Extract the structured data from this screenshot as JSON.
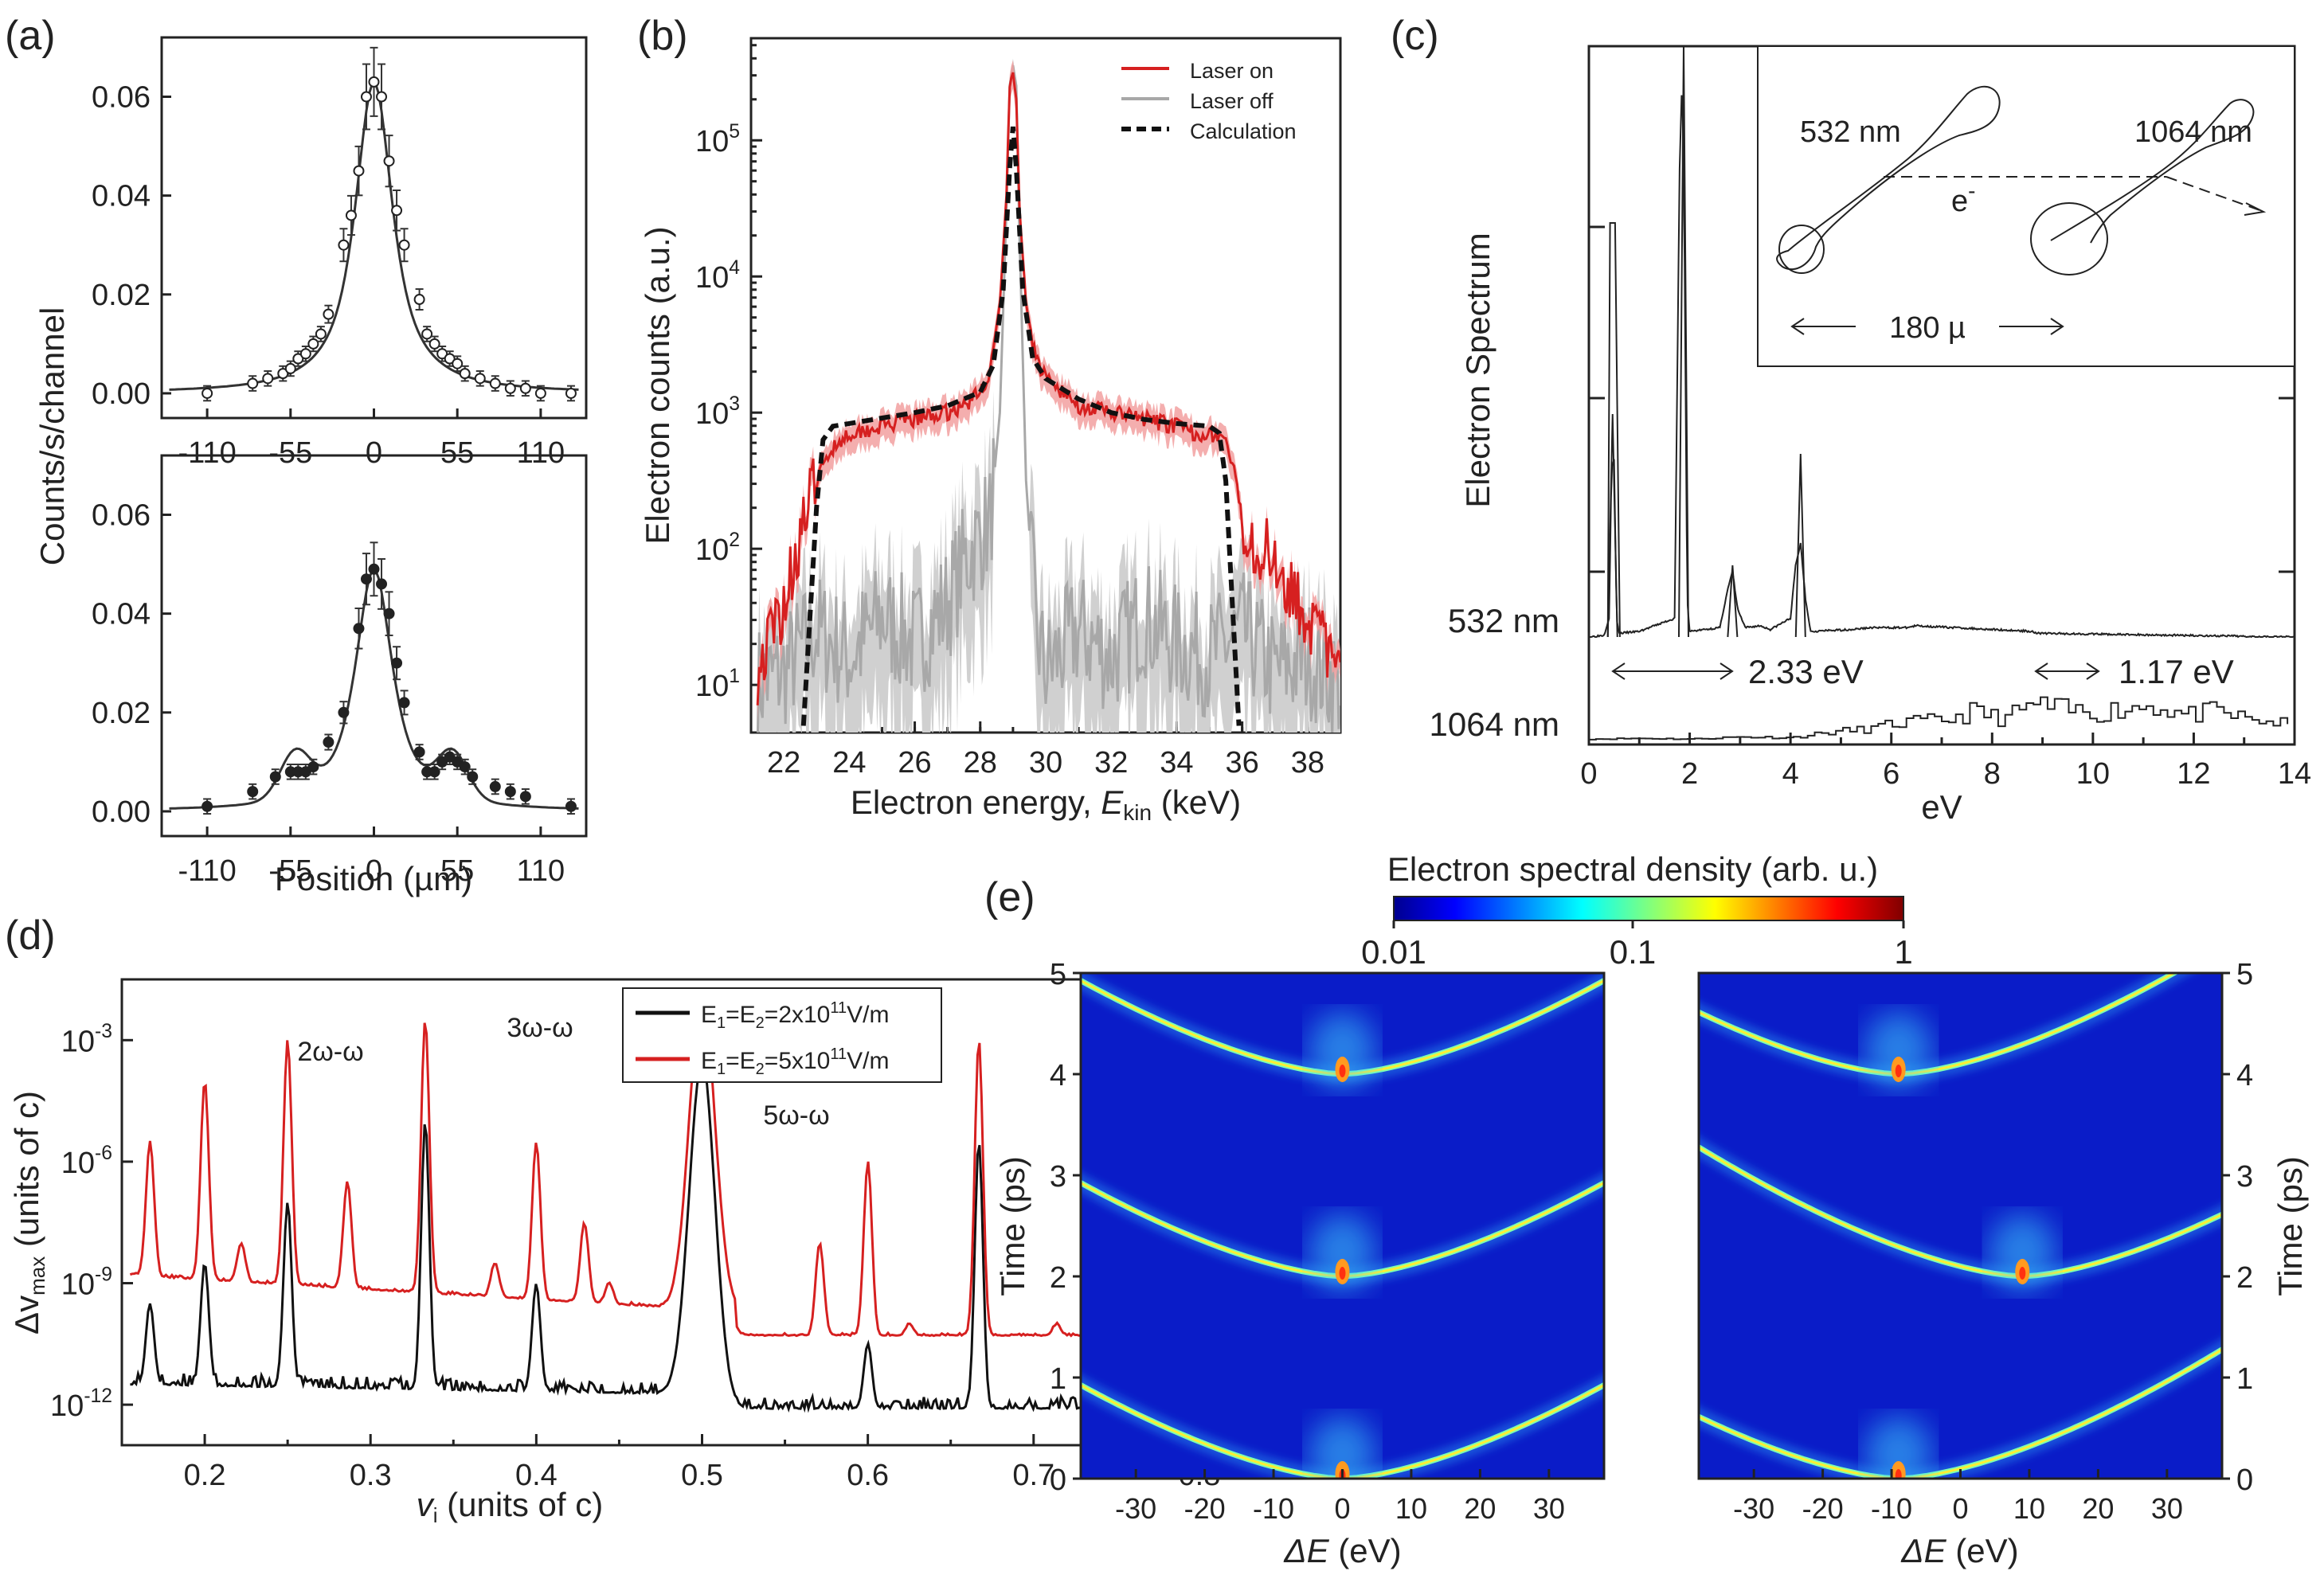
{
  "panel_labels": [
    "(a)",
    "(b)",
    "(c)",
    "(d)",
    "(e)"
  ],
  "colors": {
    "red": "#d62020",
    "black": "#111111",
    "gray": "#a8a8a8",
    "pink": "#f2a0a0",
    "lightgray": "#d0d0d0"
  },
  "chart_data": [
    {
      "id": "a_top",
      "type": "scatter",
      "ylabel": "Counts/s/channel",
      "xlabel": "",
      "xlim": [
        -140,
        140
      ],
      "ylim": [
        -0.005,
        0.072
      ],
      "xticks": [
        -110,
        -55,
        0,
        55,
        110
      ],
      "yticks": [
        0.0,
        0.02,
        0.04,
        0.06
      ],
      "ytick_labels": [
        "0.00",
        "0.02",
        "0.04",
        "0.06"
      ],
      "x": [
        -110,
        -80,
        -70,
        -60,
        -55,
        -50,
        -45,
        -40,
        -35,
        -30,
        -20,
        -15,
        -10,
        -5,
        0,
        5,
        10,
        15,
        20,
        30,
        35,
        40,
        45,
        50,
        55,
        60,
        70,
        80,
        90,
        100,
        110,
        130
      ],
      "y": [
        0.0,
        0.002,
        0.003,
        0.004,
        0.005,
        0.007,
        0.008,
        0.01,
        0.012,
        0.016,
        0.03,
        0.036,
        0.045,
        0.06,
        0.063,
        0.06,
        0.047,
        0.037,
        0.03,
        0.019,
        0.012,
        0.01,
        0.008,
        0.007,
        0.006,
        0.004,
        0.003,
        0.002,
        0.001,
        0.001,
        0.0,
        0.0
      ],
      "markers": "open"
    },
    {
      "id": "a_bottom",
      "type": "scatter",
      "ylabel": "",
      "xlabel": "Position (µm)",
      "xlim": [
        -140,
        140
      ],
      "ylim": [
        -0.005,
        0.072
      ],
      "xticks": [
        -110,
        -55,
        0,
        55,
        110
      ],
      "yticks": [
        0.0,
        0.02,
        0.04,
        0.06
      ],
      "ytick_labels": [
        "0.00",
        "0.02",
        "0.04",
        "0.06"
      ],
      "x": [
        -110,
        -80,
        -65,
        -55,
        -50,
        -45,
        -40,
        -30,
        -20,
        -10,
        -5,
        0,
        5,
        10,
        15,
        20,
        30,
        35,
        40,
        45,
        50,
        55,
        60,
        65,
        80,
        90,
        100,
        130
      ],
      "y": [
        0.001,
        0.004,
        0.007,
        0.008,
        0.008,
        0.008,
        0.009,
        0.014,
        0.02,
        0.037,
        0.047,
        0.049,
        0.046,
        0.04,
        0.03,
        0.022,
        0.012,
        0.008,
        0.008,
        0.01,
        0.011,
        0.01,
        0.009,
        0.007,
        0.005,
        0.004,
        0.003,
        0.001
      ],
      "markers": "filled"
    },
    {
      "id": "b",
      "type": "line",
      "xlabel": "Electron energy, ",
      "xlabel_sym": "E",
      "xlabel_sub": "kin",
      "xlabel_unit": " (keV)",
      "ylabel": "Electron counts (a.u.)",
      "xlim": [
        21,
        39
      ],
      "ylim_log10": [
        0.65,
        5.75
      ],
      "xticks": [
        22,
        24,
        26,
        28,
        30,
        32,
        34,
        36,
        38
      ],
      "yticks": [
        {
          "base": "10",
          "exp": "1",
          "v": 1
        },
        {
          "base": "10",
          "exp": "2",
          "v": 2
        },
        {
          "base": "10",
          "exp": "3",
          "v": 3
        },
        {
          "base": "10",
          "exp": "4",
          "v": 4
        },
        {
          "base": "10",
          "exp": "5",
          "v": 5
        }
      ],
      "legend": [
        "Laser on",
        "Laser off",
        "Calculation"
      ],
      "series": [
        {
          "name": "Laser on",
          "x": [
            21.2,
            22,
            22.5,
            23,
            23.5,
            24,
            25,
            26,
            27,
            27.5,
            28,
            28.3,
            28.6,
            28.8,
            28.9,
            29.0,
            29.1,
            29.2,
            29.4,
            29.7,
            30,
            30.5,
            31,
            32,
            33,
            34,
            34.5,
            35,
            35.5,
            35.8,
            36,
            36.5,
            37,
            37.5,
            38,
            38.5,
            39
          ],
          "log10y": [
            1.1,
            1.6,
            2.1,
            2.5,
            2.75,
            2.85,
            2.9,
            2.95,
            3.0,
            3.05,
            3.15,
            3.3,
            3.8,
            4.6,
            5.4,
            5.5,
            5.3,
            4.5,
            3.8,
            3.4,
            3.25,
            3.15,
            3.05,
            3.0,
            2.95,
            2.9,
            2.85,
            2.85,
            2.8,
            2.5,
            2.2,
            2.0,
            1.95,
            1.7,
            1.5,
            1.3,
            1.05
          ]
        },
        {
          "name": "Laser off",
          "x": [
            21.2,
            22,
            23,
            24,
            25,
            26,
            27,
            27.5,
            28,
            28.3,
            28.6,
            28.8,
            28.9,
            29.0,
            29.1,
            29.2,
            29.4,
            29.7,
            30,
            31,
            32,
            33,
            34,
            35,
            36,
            37,
            38,
            39
          ],
          "log10y": [
            1.0,
            1.1,
            1.4,
            1.2,
            1.5,
            1.3,
            1.6,
            1.9,
            2.1,
            2.2,
            3.0,
            4.5,
            5.4,
            5.55,
            5.4,
            4.3,
            2.5,
            1.4,
            1.1,
            1.4,
            1.2,
            1.5,
            1.3,
            1.2,
            1.4,
            1.1,
            1.2,
            1.0
          ]
        },
        {
          "name": "Calculation",
          "x": [
            22.6,
            22.8,
            23.0,
            23.2,
            23.5,
            24,
            25,
            26,
            27,
            28,
            28.4,
            28.7,
            28.9,
            29.0,
            29.1,
            29.3,
            29.6,
            30,
            31,
            32,
            33,
            34,
            35,
            35.3,
            35.5,
            35.7,
            35.9
          ],
          "log10y": [
            0.7,
            1.5,
            2.3,
            2.8,
            2.9,
            2.92,
            2.96,
            3.0,
            3.05,
            3.15,
            3.35,
            3.9,
            4.8,
            5.1,
            4.8,
            3.9,
            3.4,
            3.25,
            3.1,
            3.0,
            2.95,
            2.92,
            2.9,
            2.85,
            2.5,
            1.6,
            0.7
          ]
        }
      ]
    },
    {
      "id": "c",
      "type": "line",
      "xlabel": "eV",
      "ylabel": "Electron Spectrum",
      "xlim": [
        0,
        14
      ],
      "xticks": [
        0,
        2,
        4,
        6,
        8,
        10,
        12,
        14
      ],
      "trace_labels": [
        "532 nm",
        "1064 nm"
      ],
      "separations": [
        "2.33 eV",
        "1.17 eV"
      ],
      "inset": {
        "wl1": "532 nm",
        "wl2": "1064 nm",
        "particle": "e",
        "charge": "-",
        "distance": "180 µ"
      },
      "series": [
        {
          "name": "532 nm",
          "x": [
            0,
            0.3,
            0.4,
            0.45,
            0.5,
            0.55,
            0.6,
            1.0,
            1.7,
            1.8,
            1.85,
            1.9,
            1.95,
            2.0,
            2.6,
            2.75,
            2.85,
            2.95,
            3.1,
            3.4,
            3.6,
            4.0,
            4.1,
            4.2,
            4.3,
            4.4,
            5.2,
            5.6,
            6.3,
            6.5,
            8.8,
            8.9,
            14
          ],
          "rel": [
            0,
            0.01,
            0.1,
            0.9,
            0.95,
            0.1,
            0.02,
            0.03,
            0.1,
            2.5,
            3.0,
            2.0,
            0.2,
            0.03,
            0.05,
            0.25,
            0.35,
            0.15,
            0.05,
            0.06,
            0.04,
            0.1,
            0.38,
            0.5,
            0.2,
            0.03,
            0.04,
            0.05,
            0.05,
            0.06,
            0.03,
            0.02,
            0.0
          ]
        },
        {
          "name": "1064 nm",
          "x": [
            0,
            1,
            2,
            3,
            4,
            4.8,
            5.5,
            6.2,
            7,
            7.6,
            8.2,
            8.8,
            9.4,
            10,
            10.6,
            11.2,
            11.8,
            12.4,
            13,
            13.6,
            14
          ],
          "rel": [
            0.02,
            0.03,
            0.02,
            0.05,
            0.04,
            0.12,
            0.16,
            0.25,
            0.28,
            0.4,
            0.3,
            0.5,
            0.42,
            0.38,
            0.45,
            0.5,
            0.35,
            0.4,
            0.3,
            0.25,
            0.2
          ]
        }
      ]
    },
    {
      "id": "d",
      "type": "line",
      "xlabel_sym": "v",
      "xlabel_sub": "i",
      "xlabel_unit": " (units of c)",
      "ylabel": "Δv",
      "ylabel_sub": "max",
      "ylabel_unit": " (units of c)",
      "xlim": [
        0.15,
        0.85
      ],
      "ylim_log10": [
        -13,
        -1.5
      ],
      "xticks": [
        0.2,
        0.3,
        0.4,
        0.5,
        0.6,
        0.7,
        0.8
      ],
      "yticks": [
        {
          "base": "10",
          "exp": "-12",
          "v": -12
        },
        {
          "base": "10",
          "exp": "-9",
          "v": -9
        },
        {
          "base": "10",
          "exp": "-6",
          "v": -6
        },
        {
          "base": "10",
          "exp": "-3",
          "v": -3
        }
      ],
      "annotations": [
        "2ω-ω",
        "3ω-ω",
        "5ω-ω"
      ],
      "legend": [
        {
          "pre": "E",
          "s1": "1",
          "mid": "=E",
          "s2": "2",
          "val": "=2x10",
          "exp": "11",
          "unit": "V/m"
        },
        {
          "pre": "E",
          "s1": "1",
          "mid": "=E",
          "s2": "2",
          "val": "=5x10",
          "exp": "11",
          "unit": "V/m"
        }
      ],
      "series": [
        {
          "name": "E1=E2=2x10^11 V/m",
          "baseline_start": -11.5,
          "baseline_end": -12.0,
          "peaks": [
            [
              0.167,
              -9.5
            ],
            [
              0.2,
              -8.5
            ],
            [
              0.25,
              -7.0
            ],
            [
              0.333,
              -5.0
            ],
            [
              0.4,
              -9.0
            ],
            [
              0.5,
              -3.5
            ],
            [
              0.6,
              -10.5
            ],
            [
              0.667,
              -5.5
            ],
            [
              0.75,
              -9.5
            ]
          ]
        },
        {
          "name": "E1=E2=5x10^11 V/m",
          "baseline_start": -8.8,
          "baseline_end": -10.5,
          "peaks": [
            [
              0.167,
              -5.5
            ],
            [
              0.2,
              -4.0
            ],
            [
              0.222,
              -8.0
            ],
            [
              0.25,
              -3.0
            ],
            [
              0.286,
              -6.5
            ],
            [
              0.3,
              -9.5
            ],
            [
              0.333,
              -2.5
            ],
            [
              0.375,
              -8.5
            ],
            [
              0.4,
              -5.5
            ],
            [
              0.429,
              -7.5
            ],
            [
              0.444,
              -9.0
            ],
            [
              0.5,
              -1.9
            ],
            [
              0.571,
              -8.0
            ],
            [
              0.6,
              -6.0
            ],
            [
              0.625,
              -10.0
            ],
            [
              0.667,
              -3.0
            ],
            [
              0.714,
              -10.0
            ],
            [
              0.75,
              -5.0
            ],
            [
              0.8,
              -7.0
            ],
            [
              0.833,
              -10.0
            ]
          ]
        }
      ]
    },
    {
      "id": "e",
      "type": "heatmap",
      "colorbar_title": "Electron spectral density (arb. u.)",
      "colorbar_ticks": [
        "0.01",
        "0.1",
        "1"
      ],
      "xlabel_sym": "ΔE",
      "xlabel_unit": " (eV)",
      "ylabel": "Time (ps)",
      "xlim": [
        -38,
        38
      ],
      "ylim": [
        0,
        5
      ],
      "xticks": [
        -30,
        -20,
        -10,
        0,
        10,
        20,
        30
      ],
      "yticks": [
        0,
        1,
        2,
        3,
        4,
        5
      ],
      "maps": [
        {
          "name": "left",
          "curves": [
            [
              0,
              0
            ],
            [
              0,
              2
            ],
            [
              0,
              4
            ]
          ]
        },
        {
          "name": "right",
          "curves": [
            [
              -9,
              0
            ],
            [
              9,
              2
            ],
            [
              -9,
              4
            ]
          ]
        }
      ]
    }
  ]
}
